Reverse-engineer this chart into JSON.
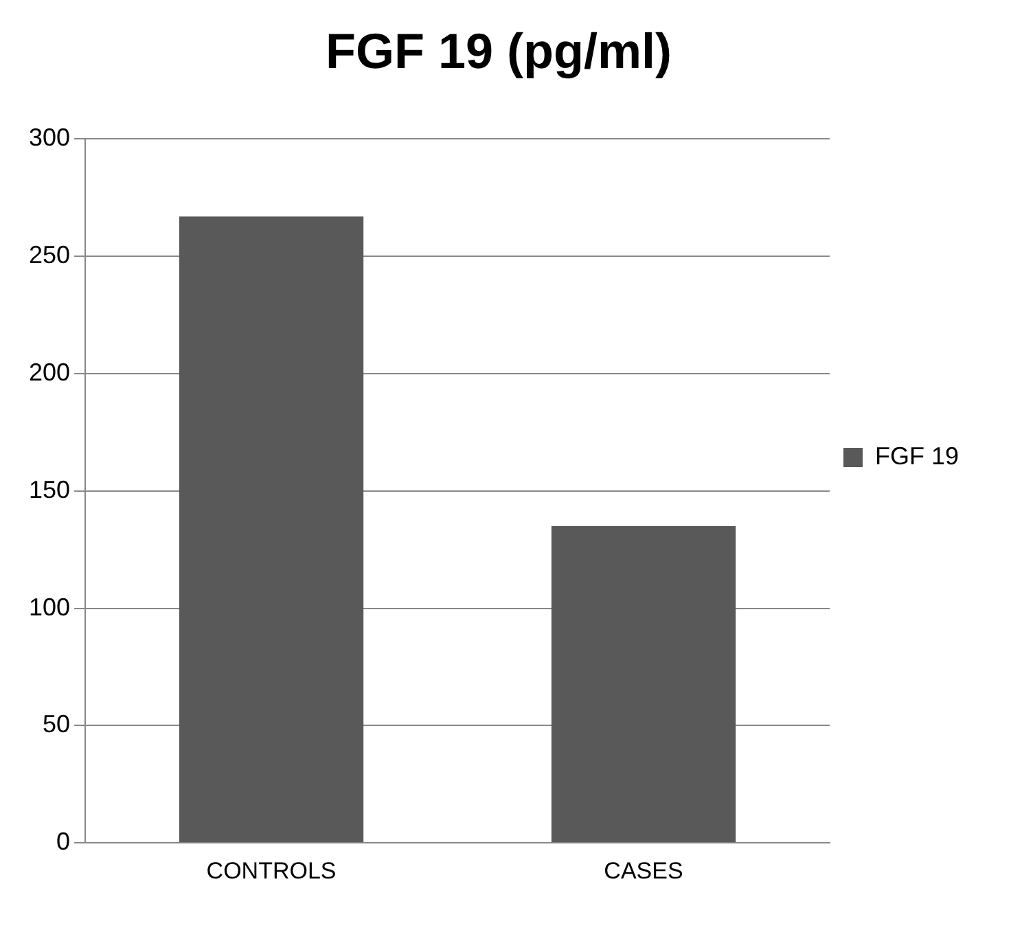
{
  "chart_data": {
    "type": "bar",
    "title": "FGF 19 (pg/ml)",
    "categories": [
      "CONTROLS",
      "CASES"
    ],
    "series": [
      {
        "name": "FGF 19",
        "color": "#595959",
        "values": [
          267,
          135
        ]
      }
    ],
    "ylim": [
      0,
      300
    ],
    "yticks": [
      0,
      50,
      100,
      150,
      200,
      250,
      300
    ],
    "grid": "y",
    "legend": "right"
  }
}
